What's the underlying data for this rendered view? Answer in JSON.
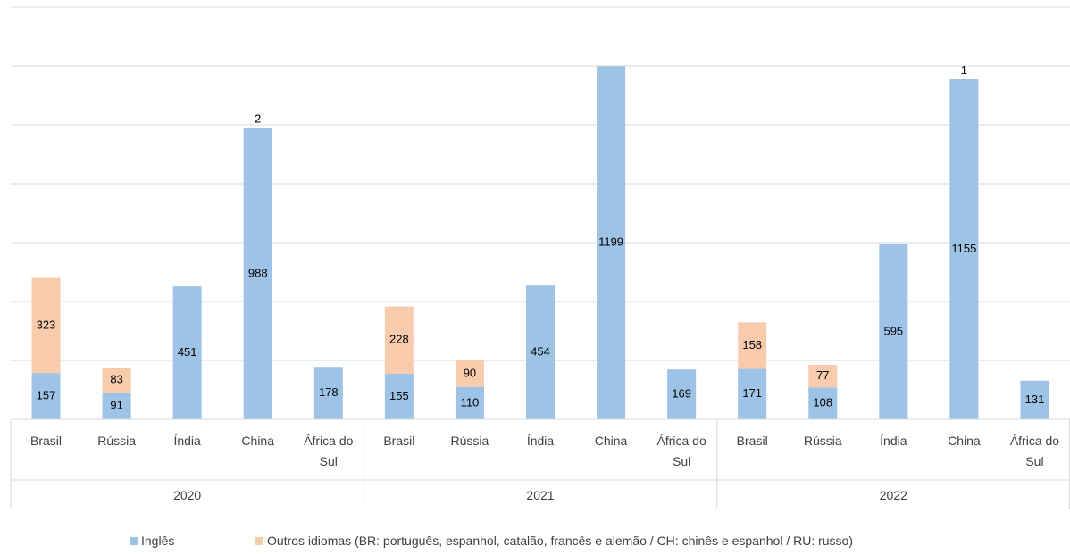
{
  "chart_data": {
    "type": "stacked-bar",
    "categories": [
      "Brasil",
      "Rússia",
      "Índia",
      "China",
      "África do Sul",
      "Brasil",
      "Rússia",
      "Índia",
      "China",
      "África do Sul",
      "Brasil",
      "Rússia",
      "Índia",
      "China",
      "África do Sul"
    ],
    "category_groups": [
      "2020",
      "2021",
      "2022"
    ],
    "series": [
      {
        "name": "Inglês",
        "color": "#9dc3e6",
        "values": [
          157,
          91,
          451,
          988,
          178,
          155,
          110,
          454,
          1199,
          169,
          171,
          108,
          595,
          1155,
          131
        ]
      },
      {
        "name": "Outros idiomas (BR: português, espanhol, catalão, francês e alemão / CH: chinês e espanhol / RU: russo)",
        "color": "#f8cbad",
        "values": [
          323,
          83,
          null,
          2,
          null,
          228,
          90,
          null,
          null,
          null,
          158,
          77,
          null,
          1,
          null
        ]
      }
    ],
    "ylim": [
      0,
      1400
    ],
    "yticks": [
      0,
      200,
      400,
      600,
      800,
      1000,
      1200,
      1400
    ],
    "grid": true,
    "legend": "bottom"
  }
}
